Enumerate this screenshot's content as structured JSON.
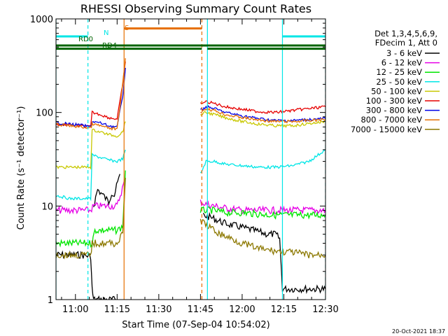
{
  "chart_data": {
    "type": "line",
    "title": "RHESSI Observing Summary Count Rates",
    "xlabel": "Start Time (07-Sep-04 10:54:02)",
    "ylabel": "Count Rate (s⁻¹ detector⁻¹)",
    "y_scale": "log",
    "xlim": [
      -1,
      96
    ],
    "ylim": [
      1,
      1000
    ],
    "x_ticks": [
      {
        "value": 6,
        "label": "11:00"
      },
      {
        "value": 21,
        "label": "11:15"
      },
      {
        "value": 36,
        "label": "11:30"
      },
      {
        "value": 51,
        "label": "11:45"
      },
      {
        "value": 66,
        "label": "12:00"
      },
      {
        "value": 81,
        "label": "12:15"
      },
      {
        "value": 96,
        "label": "12:30"
      }
    ],
    "y_ticks": [
      {
        "value": 1,
        "label": "1"
      },
      {
        "value": 10,
        "label": "10"
      },
      {
        "value": 100,
        "label": "100"
      },
      {
        "value": 1000,
        "label": "1000"
      }
    ],
    "legend": {
      "placement": "right",
      "header": [
        "Det 1,3,4,5,6,9,",
        "FDecim 1, Att 0"
      ]
    },
    "series": [
      {
        "name": "3 - 6 keV",
        "color": "#000000",
        "points": [
          [
            -1,
            3
          ],
          [
            4,
            3
          ],
          [
            8,
            3
          ],
          [
            11.5,
            2.9
          ],
          [
            12,
            1.3
          ],
          [
            12.5,
            1
          ],
          [
            21,
            1
          ]
        ],
        "points2": [
          [
            12.5,
            10
          ],
          [
            14,
            15
          ],
          [
            16,
            13
          ],
          [
            18,
            11
          ],
          [
            19,
            14
          ],
          [
            20,
            13
          ],
          [
            22,
            22
          ]
        ],
        "points3": [
          [
            52,
            8
          ],
          [
            55,
            7.5
          ],
          [
            60,
            6.5
          ],
          [
            65,
            6
          ],
          [
            70,
            5.5
          ],
          [
            75,
            5
          ],
          [
            78,
            5
          ],
          [
            79.5,
            4.5
          ],
          [
            80.5,
            1.3
          ],
          [
            96,
            1.3
          ]
        ]
      },
      {
        "name": "6 - 12 keV",
        "color": "#e600e6",
        "points": [
          [
            -1,
            9
          ],
          [
            4,
            9
          ],
          [
            8,
            9
          ],
          [
            11.5,
            9
          ],
          [
            12.5,
            10
          ],
          [
            15,
            10
          ],
          [
            18,
            10
          ],
          [
            21,
            10
          ],
          [
            24,
            20
          ]
        ],
        "points2": [
          [
            51,
            11
          ],
          [
            53,
            10.5
          ],
          [
            56,
            10
          ],
          [
            60,
            9.5
          ],
          [
            66,
            9
          ],
          [
            72,
            9
          ],
          [
            78,
            9
          ],
          [
            84,
            9
          ],
          [
            90,
            9
          ],
          [
            96,
            9
          ]
        ]
      },
      {
        "name": "12 - 25 keV",
        "color": "#00e600",
        "points": [
          [
            -1,
            4
          ],
          [
            11.5,
            4
          ],
          [
            12,
            4
          ],
          [
            13,
            5.5
          ],
          [
            18,
            5.5
          ],
          [
            21,
            5.5
          ],
          [
            23,
            6
          ],
          [
            24,
            24
          ]
        ],
        "points2": [
          [
            51,
            9
          ],
          [
            55,
            9
          ],
          [
            60,
            8.5
          ],
          [
            66,
            8.5
          ],
          [
            72,
            8.2
          ],
          [
            78,
            8
          ],
          [
            84,
            8
          ],
          [
            90,
            8
          ],
          [
            96,
            8
          ]
        ]
      },
      {
        "name": "25 - 50 keV",
        "color": "#00e6e6",
        "points": [
          [
            -1,
            13
          ],
          [
            4,
            12
          ],
          [
            8,
            12
          ],
          [
            11.5,
            12
          ],
          [
            12,
            35
          ],
          [
            15,
            33
          ],
          [
            18,
            31
          ],
          [
            21,
            30
          ],
          [
            23,
            32
          ],
          [
            24,
            40
          ]
        ],
        "points2": [
          [
            51,
            22
          ],
          [
            53,
            30
          ],
          [
            56,
            30
          ],
          [
            60,
            28
          ],
          [
            66,
            27
          ],
          [
            72,
            26
          ],
          [
            78,
            26
          ],
          [
            84,
            27
          ],
          [
            90,
            30
          ],
          [
            96,
            40
          ]
        ]
      },
      {
        "name": "50 - 100 keV",
        "color": "#c8c800",
        "points": [
          [
            -1,
            26
          ],
          [
            4,
            26
          ],
          [
            8,
            26
          ],
          [
            11.5,
            26
          ],
          [
            12,
            65
          ],
          [
            15,
            62
          ],
          [
            18,
            58
          ],
          [
            21,
            56
          ],
          [
            23,
            62
          ],
          [
            24,
            80
          ]
        ],
        "points2": [
          [
            51,
            95
          ],
          [
            53,
            100
          ],
          [
            56,
            95
          ],
          [
            60,
            88
          ],
          [
            66,
            80
          ],
          [
            72,
            75
          ],
          [
            78,
            72
          ],
          [
            84,
            72
          ],
          [
            90,
            76
          ],
          [
            96,
            80
          ]
        ]
      },
      {
        "name": "100 - 300 keV",
        "color": "#e60000",
        "points": [
          [
            -1,
            75
          ],
          [
            4,
            73
          ],
          [
            8,
            72
          ],
          [
            11.5,
            70
          ],
          [
            12,
            100
          ],
          [
            15,
            95
          ],
          [
            18,
            88
          ],
          [
            21,
            85
          ],
          [
            23,
            200
          ],
          [
            24,
            350
          ]
        ],
        "points2": [
          [
            51,
            125
          ],
          [
            53,
            130
          ],
          [
            56,
            125
          ],
          [
            60,
            115
          ],
          [
            66,
            108
          ],
          [
            72,
            102
          ],
          [
            78,
            100
          ],
          [
            84,
            105
          ],
          [
            90,
            110
          ],
          [
            96,
            115
          ]
        ]
      },
      {
        "name": "300 - 800 keV",
        "color": "#0000e6",
        "points": [
          [
            -1,
            78
          ],
          [
            4,
            75
          ],
          [
            8,
            73
          ],
          [
            11.5,
            70
          ],
          [
            12,
            80
          ],
          [
            15,
            77
          ],
          [
            18,
            72
          ],
          [
            21,
            70
          ],
          [
            23,
            150
          ],
          [
            24,
            300
          ]
        ],
        "points2": [
          [
            51,
            105
          ],
          [
            53,
            115
          ],
          [
            56,
            110
          ],
          [
            60,
            100
          ],
          [
            66,
            92
          ],
          [
            72,
            86
          ],
          [
            78,
            82
          ],
          [
            84,
            82
          ],
          [
            90,
            84
          ],
          [
            96,
            86
          ]
        ]
      },
      {
        "name": "800 - 7000 keV",
        "color": "#e66e00",
        "points": [
          [
            -1,
            75
          ],
          [
            4,
            72
          ],
          [
            8,
            70
          ],
          [
            11.5,
            68
          ],
          [
            12,
            75
          ],
          [
            15,
            72
          ],
          [
            18,
            68
          ],
          [
            21,
            66
          ],
          [
            23,
            200
          ],
          [
            24,
            380
          ]
        ],
        "points2": [
          [
            51,
            100
          ],
          [
            53,
            110
          ],
          [
            56,
            105
          ],
          [
            60,
            95
          ],
          [
            66,
            88
          ],
          [
            72,
            83
          ],
          [
            78,
            80
          ],
          [
            84,
            80
          ],
          [
            90,
            82
          ],
          [
            96,
            84
          ]
        ]
      },
      {
        "name": "7000 - 15000 keV",
        "color": "#8c7800",
        "points": [
          [
            -1,
            3
          ],
          [
            11.5,
            3
          ],
          [
            12,
            4
          ],
          [
            15,
            4
          ],
          [
            18,
            4
          ],
          [
            21,
            4
          ],
          [
            23,
            5
          ],
          [
            24,
            20
          ]
        ],
        "points2": [
          [
            51,
            7
          ],
          [
            54,
            6
          ],
          [
            58,
            5
          ],
          [
            62,
            4.5
          ],
          [
            66,
            4
          ],
          [
            72,
            3.5
          ],
          [
            78,
            3.3
          ],
          [
            84,
            3.2
          ],
          [
            90,
            3
          ],
          [
            96,
            3
          ]
        ]
      }
    ],
    "annotations": {
      "bands": [
        {
          "label": "N",
          "color": "#00e6e6",
          "level": 650,
          "segments": [
            [
              -1,
              10.5
            ],
            [
              80.5,
              96
            ]
          ]
        },
        {
          "label": "RD0",
          "color": "#006400",
          "level": 520,
          "segments": [
            [
              -1,
              96
            ]
          ]
        },
        {
          "label": "RD4",
          "color": "#006400",
          "level": 480,
          "segments": [
            [
              -1,
              51.5
            ],
            [
              53.5,
              96
            ]
          ]
        },
        {
          "label": "S",
          "color": "#e66e00",
          "level": 790,
          "segments": [
            [
              23.5,
              51.5
            ]
          ]
        }
      ],
      "vlines": [
        {
          "x": -1,
          "color": "#00e6e6",
          "style": "solid"
        },
        {
          "x": 10.5,
          "color": "#00e6e6",
          "style": "dashed"
        },
        {
          "x": 23.5,
          "color": "#e66e00",
          "style": "solid"
        },
        {
          "x": 51.5,
          "color": "#e66e00",
          "style": "dashed"
        },
        {
          "x": 53.5,
          "color": "#00e6e6",
          "style": "solid"
        },
        {
          "x": 80.5,
          "color": "#00e6e6",
          "style": "solid"
        },
        {
          "x": 96,
          "color": "#00e6e6",
          "style": "dashed"
        }
      ]
    },
    "footer_date": "20-Oct-2021 18:37"
  }
}
